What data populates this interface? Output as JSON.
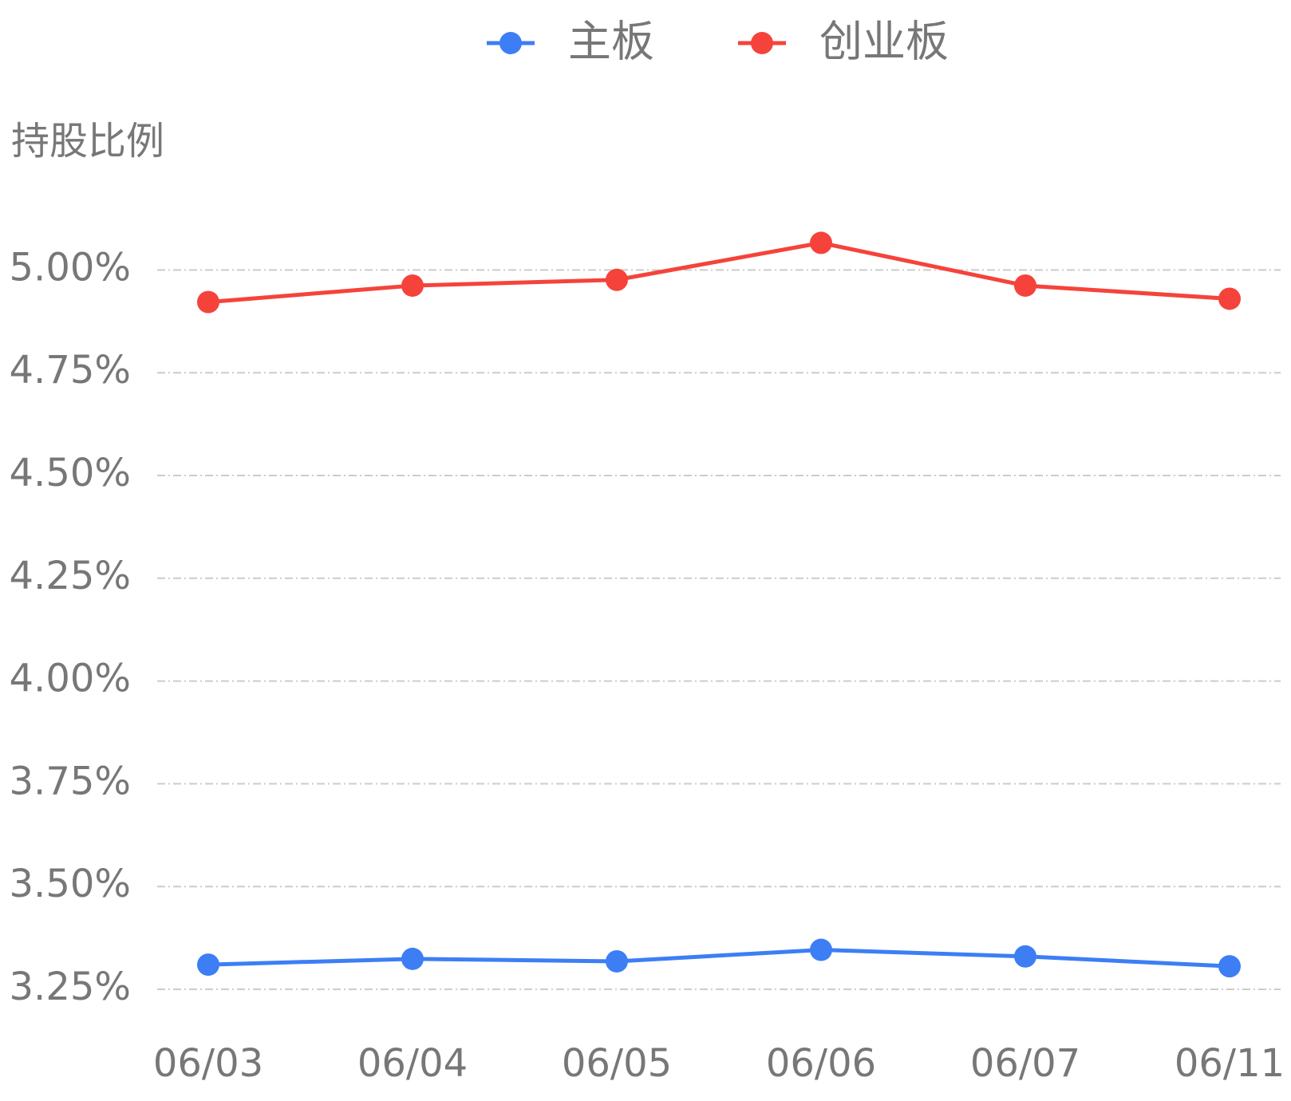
{
  "chart_data": {
    "type": "line",
    "y_axis_title": "持股比例",
    "categories": [
      "06/03",
      "06/04",
      "06/05",
      "06/06",
      "06/07",
      "06/11"
    ],
    "series": [
      {
        "name": "主板",
        "color": "#3d7ef5",
        "values": [
          3.31,
          3.324,
          3.318,
          3.346,
          3.33,
          3.306
        ]
      },
      {
        "name": "创业板",
        "color": "#f5433b",
        "values": [
          4.922,
          4.962,
          4.976,
          5.066,
          4.962,
          4.93
        ]
      }
    ],
    "ylim": [
      3.25,
      5.125
    ],
    "yticks": [
      {
        "value": 3.25,
        "label": "3.25%"
      },
      {
        "value": 3.5,
        "label": "3.50%"
      },
      {
        "value": 3.75,
        "label": "3.75%"
      },
      {
        "value": 4,
        "label": "4.00%"
      },
      {
        "value": 4.25,
        "label": "4.25%"
      },
      {
        "value": 4.5,
        "label": "4.50%"
      },
      {
        "value": 4.75,
        "label": "4.75%"
      },
      {
        "value": 5,
        "label": "5.00%"
      }
    ],
    "grid": true
  }
}
